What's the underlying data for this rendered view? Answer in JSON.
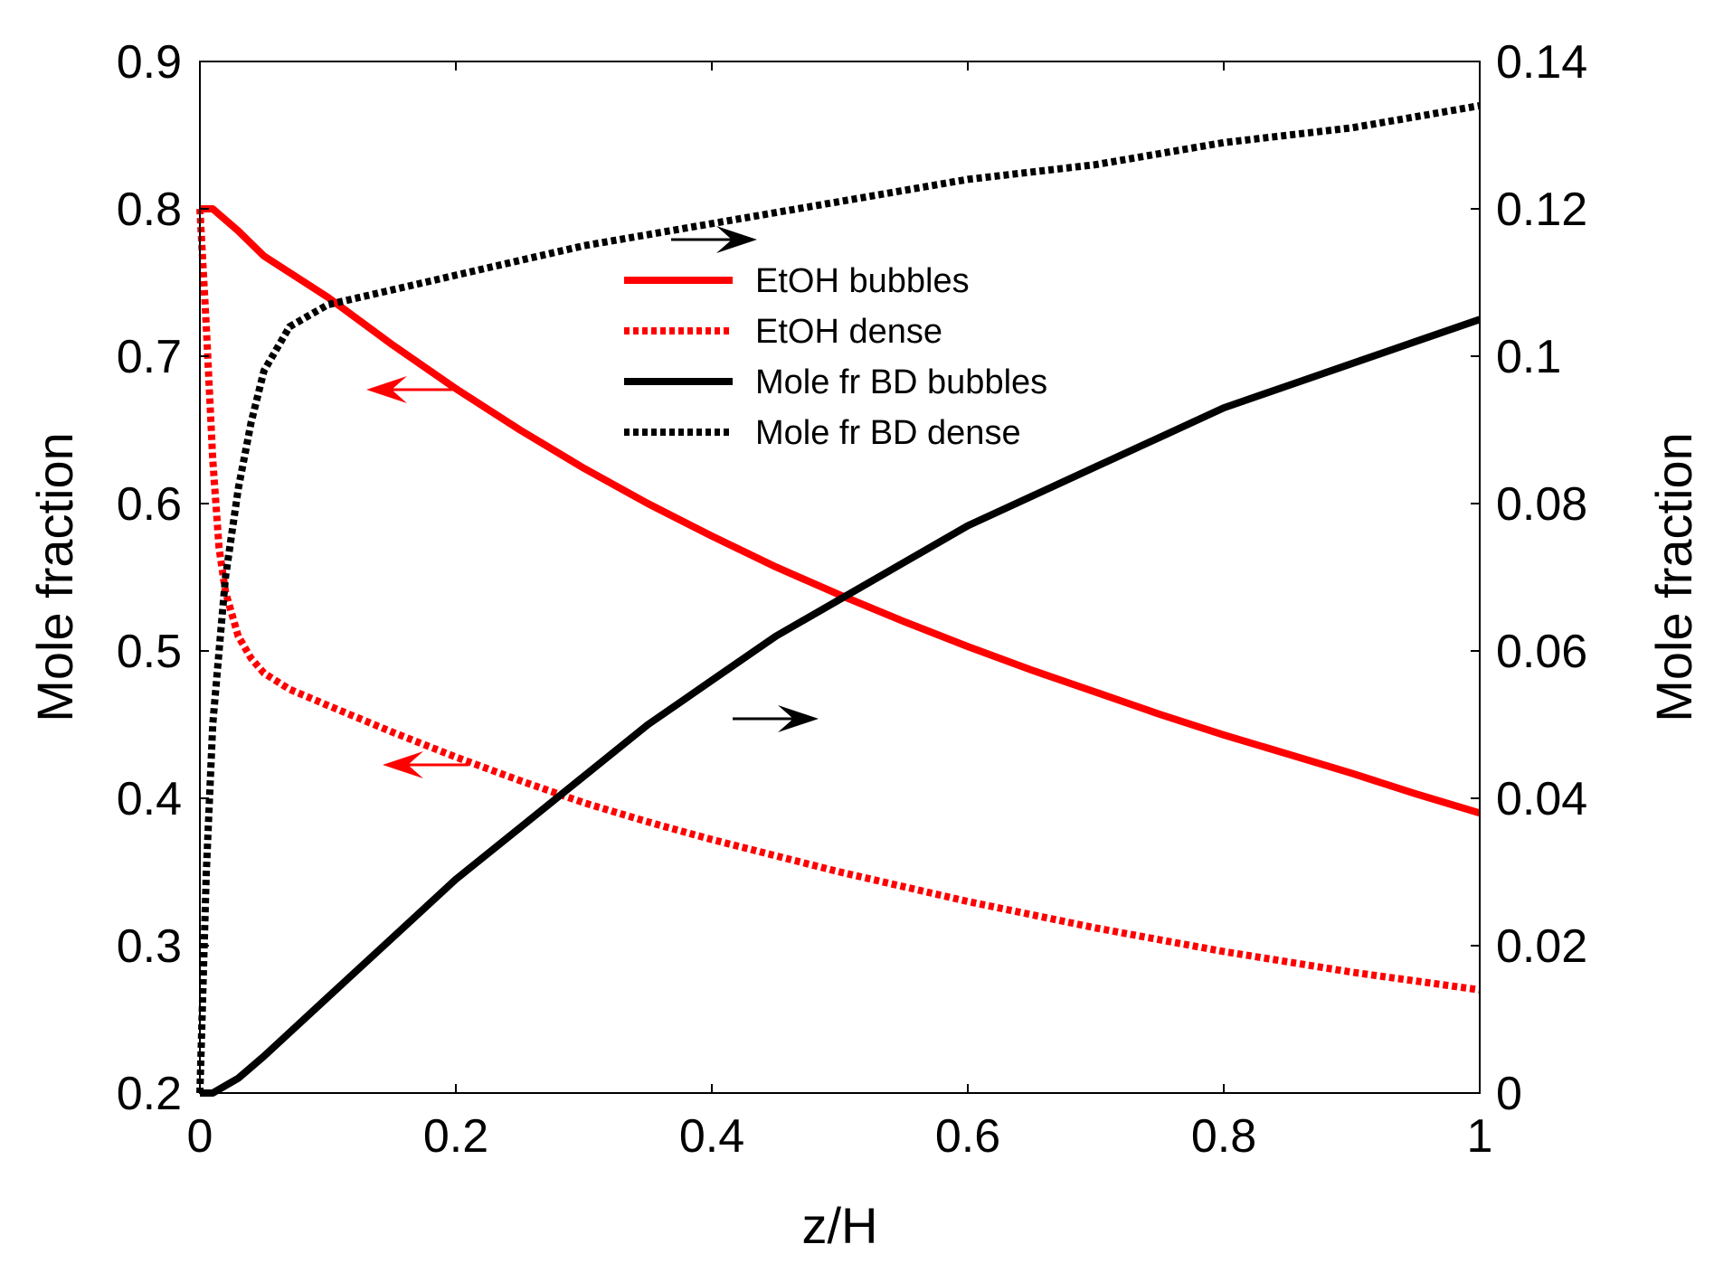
{
  "chart_data": {
    "type": "line",
    "xlabel": "z/H",
    "ylabel_left": "Mole fraction",
    "ylabel_right": "Mole fraction",
    "xlim": [
      0,
      1
    ],
    "ylim_left": [
      0.2,
      0.9
    ],
    "ylim_right": [
      0,
      0.14
    ],
    "x_ticks": [
      "0",
      "0.2",
      "0.4",
      "0.6",
      "0.8",
      "1"
    ],
    "y_left_ticks": [
      "0.2",
      "0.3",
      "0.4",
      "0.5",
      "0.6",
      "0.7",
      "0.8",
      "0.9"
    ],
    "y_right_ticks": [
      "0",
      "0.02",
      "0.04",
      "0.06",
      "0.08",
      "0.1",
      "0.12",
      "0.14"
    ],
    "grid": false,
    "legend_position": "upper-center",
    "series": [
      {
        "name": "EtOH bubbles",
        "axis": "left",
        "color": "#ff0000",
        "style": "solid",
        "x": [
          0,
          0.01,
          0.03,
          0.05,
          0.1,
          0.15,
          0.2,
          0.25,
          0.3,
          0.35,
          0.4,
          0.45,
          0.5,
          0.55,
          0.6,
          0.65,
          0.7,
          0.75,
          0.8,
          0.85,
          0.9,
          0.95,
          1.0
        ],
        "y": [
          0.8,
          0.8,
          0.785,
          0.768,
          0.74,
          0.708,
          0.678,
          0.65,
          0.624,
          0.6,
          0.578,
          0.557,
          0.538,
          0.52,
          0.503,
          0.487,
          0.472,
          0.457,
          0.443,
          0.43,
          0.417,
          0.403,
          0.39
        ]
      },
      {
        "name": "EtOH dense",
        "axis": "left",
        "color": "#ff0000",
        "style": "dotted",
        "x": [
          0,
          0.005,
          0.01,
          0.015,
          0.02,
          0.03,
          0.04,
          0.05,
          0.07,
          0.1,
          0.15,
          0.2,
          0.25,
          0.3,
          0.35,
          0.4,
          0.45,
          0.5,
          0.55,
          0.6,
          0.65,
          0.7,
          0.75,
          0.8,
          0.85,
          0.9,
          0.95,
          1.0
        ],
        "y": [
          0.8,
          0.72,
          0.63,
          0.57,
          0.54,
          0.51,
          0.495,
          0.485,
          0.474,
          0.463,
          0.445,
          0.428,
          0.412,
          0.397,
          0.384,
          0.372,
          0.361,
          0.35,
          0.34,
          0.33,
          0.321,
          0.312,
          0.304,
          0.296,
          0.289,
          0.282,
          0.276,
          0.27
        ]
      },
      {
        "name": "Mole fr BD bubbles",
        "axis": "right",
        "color": "#000000",
        "style": "solid",
        "x": [
          0,
          0.01,
          0.03,
          0.05,
          0.1,
          0.15,
          0.2,
          0.25,
          0.3,
          0.35,
          0.4,
          0.45,
          0.5,
          0.55,
          0.6,
          0.65,
          0.7,
          0.75,
          0.8,
          0.85,
          0.9,
          0.95,
          1.0
        ],
        "y": [
          0,
          0,
          0.002,
          0.005,
          0.013,
          0.021,
          0.029,
          0.036,
          0.043,
          0.05,
          0.056,
          0.062,
          0.067,
          0.072,
          0.077,
          0.081,
          0.085,
          0.089,
          0.093,
          0.096,
          0.099,
          0.102,
          0.105
        ]
      },
      {
        "name": "Mole fr BD dense",
        "axis": "right",
        "color": "#000000",
        "style": "dotted",
        "x": [
          0,
          0.005,
          0.01,
          0.015,
          0.02,
          0.03,
          0.04,
          0.05,
          0.07,
          0.1,
          0.15,
          0.2,
          0.3,
          0.4,
          0.5,
          0.6,
          0.7,
          0.8,
          0.9,
          1.0
        ],
        "y": [
          0,
          0.03,
          0.05,
          0.06,
          0.07,
          0.082,
          0.091,
          0.098,
          0.104,
          0.107,
          0.109,
          0.111,
          0.115,
          0.118,
          0.121,
          0.124,
          0.126,
          0.129,
          0.131,
          0.134
        ]
      }
    ],
    "annotations": [
      {
        "arrow": "left",
        "color": "#ff0000",
        "points_to_axis": "left"
      },
      {
        "arrow": "left",
        "color": "#ff0000",
        "points_to_axis": "left"
      },
      {
        "arrow": "right",
        "color": "#000000",
        "points_to_axis": "right"
      },
      {
        "arrow": "right",
        "color": "#000000",
        "points_to_axis": "right"
      }
    ]
  }
}
